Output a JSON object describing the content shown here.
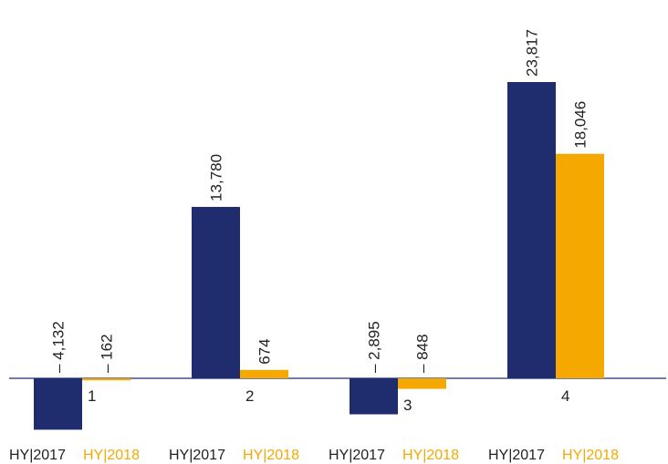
{
  "chart_data": {
    "type": "bar",
    "categories": [
      "1",
      "2",
      "3",
      "4"
    ],
    "series": [
      {
        "name": "HY|2017",
        "color": "#1f2d6e",
        "values": [
          -4132,
          13780,
          -2895,
          23817
        ],
        "value_labels": [
          "– 4,132",
          "13,780",
          "– 2,895",
          "23,817"
        ]
      },
      {
        "name": "HY|2018",
        "color": "#f5a800",
        "values": [
          -162,
          674,
          -848,
          18046
        ],
        "value_labels": [
          "– 162",
          "674",
          "– 848",
          "18,046"
        ]
      }
    ]
  }
}
